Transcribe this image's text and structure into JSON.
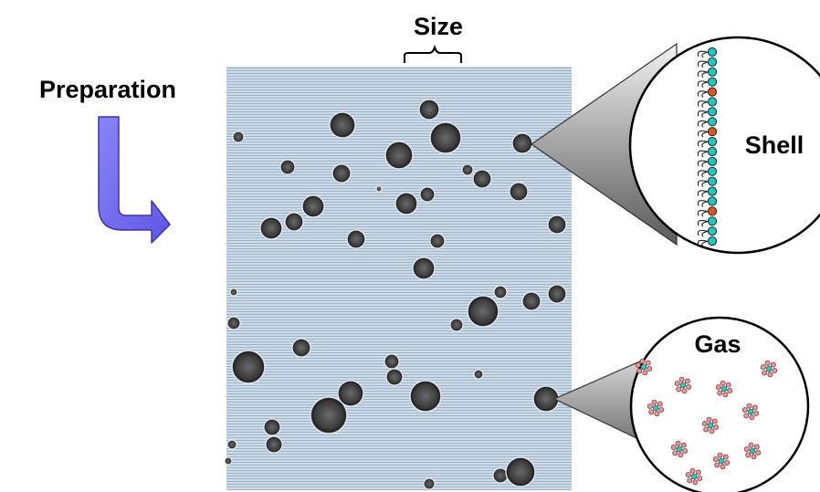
{
  "labels": {
    "size": "Size",
    "preparation": "Preparation",
    "shell": "Shell",
    "gas": "Gas"
  },
  "colors": {
    "arrow": "#7a72f0",
    "micrograph_bg": "#c9d8e6",
    "bubble": "#3a3a3a",
    "lipid_teal": "#1fc7c0",
    "lipid_orange": "#d8581e",
    "gas_atom_pink": "#e49a9a",
    "gas_atom_teal": "#30c8c0",
    "cone": "#9a9a9a"
  },
  "icons": {
    "preparation_arrow": "bent-arrow-down-right-icon",
    "size_bracket": "bracket-icon"
  }
}
